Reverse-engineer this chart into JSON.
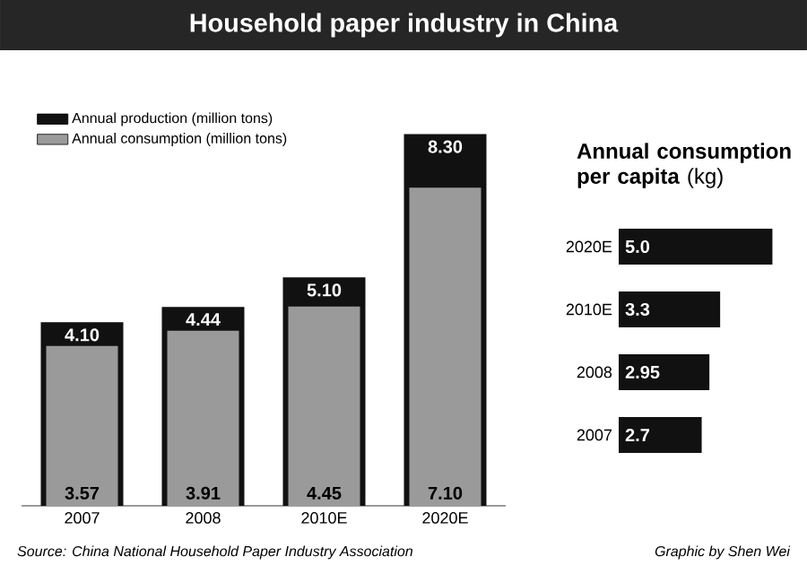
{
  "chart_data": [
    {
      "type": "bar",
      "title": "Household paper industry in China",
      "categories": [
        "2007",
        "2008",
        "2010E",
        "2020E"
      ],
      "legend": "top left",
      "series": [
        {
          "name": "Annual production (million tons)",
          "color": "#111111",
          "values": [
            4.1,
            4.44,
            5.1,
            8.3
          ],
          "value_labels": [
            "4.10",
            "4.44",
            "5.10",
            "8.30"
          ]
        },
        {
          "name": "Annual consumption (million tons)",
          "color": "#9a9a9a",
          "values": [
            3.57,
            3.91,
            4.45,
            7.1
          ],
          "value_labels": [
            "3.57",
            "3.91",
            "4.45",
            "7.10"
          ]
        }
      ],
      "annotations": [
        "Source: China National Household Paper Industry Association",
        "Graphic by Shen Wei"
      ]
    },
    {
      "type": "bar",
      "orientation": "horizontal",
      "title": "**Annual consumption per capita** (kg)",
      "categories": [
        "2020E",
        "2010E",
        "2008",
        "2007"
      ],
      "color": "#111111",
      "values": [
        5.0,
        3.3,
        2.95,
        2.7
      ],
      "value_labels": [
        "5.0",
        "3.3",
        "2.95",
        "2.7"
      ]
    }
  ]
}
